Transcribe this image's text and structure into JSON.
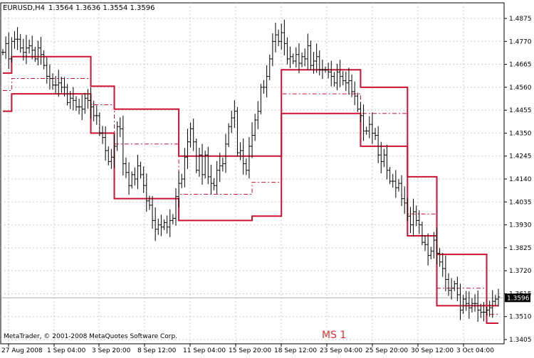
{
  "symbol_label": "EURUSD,H4",
  "ohlc_label": "1.3564 1.3636 1.3554 1.3596",
  "copyright": "MetaTrader, © 2001-2008 MetaQuotes Software Corp.",
  "indicator_label": "MS 1",
  "current_price_label": "1.3596",
  "colors": {
    "background": "#ffffff",
    "grid": "#c8c8c8",
    "bars": "#000000",
    "channel": "#cc1133",
    "mid": "#cc1133",
    "label": "#e53030"
  },
  "chart_data": {
    "type": "line",
    "ylim": [
      1.3405,
      1.4875
    ],
    "y_ticks": [
      "1.4875",
      "1.4770",
      "1.4665",
      "1.4560",
      "1.4455",
      "1.4350",
      "1.4245",
      "1.4140",
      "1.4035",
      "1.3930",
      "1.3825",
      "1.3720",
      "1.3615",
      "1.3510",
      "1.3405"
    ],
    "x_ticks": [
      "27 Aug 2008",
      "1 Sep 04:00",
      "3 Sep 20:00",
      "8 Sep 12:00",
      "11 Sep 04:00",
      "15 Sep 20:00",
      "18 Sep 12:00",
      "23 Sep 04:00",
      "25 Sep 20:00",
      "30 Sep 12:00",
      "3 Oct 04:00"
    ],
    "current_price": 1.3596,
    "bar_count": 170,
    "bar_closes": [
      1.472,
      1.476,
      1.469,
      1.477,
      1.478,
      1.478,
      1.474,
      1.472,
      1.474,
      1.475,
      1.473,
      1.469,
      1.474,
      1.471,
      1.466,
      1.461,
      1.46,
      1.457,
      1.457,
      1.458,
      1.456,
      1.456,
      1.449,
      1.451,
      1.45,
      1.447,
      1.447,
      1.446,
      1.451,
      1.45,
      1.447,
      1.443,
      1.443,
      1.435,
      1.433,
      1.427,
      1.422,
      1.424,
      1.429,
      1.438,
      1.437,
      1.421,
      1.417,
      1.411,
      1.416,
      1.414,
      1.42,
      1.416,
      1.411,
      1.404,
      1.402,
      1.395,
      1.391,
      1.393,
      1.392,
      1.394,
      1.392,
      1.395,
      1.396,
      1.406,
      1.412,
      1.414,
      1.424,
      1.431,
      1.437,
      1.431,
      1.418,
      1.425,
      1.416,
      1.425,
      1.415,
      1.412,
      1.411,
      1.418,
      1.42,
      1.421,
      1.43,
      1.438,
      1.442,
      1.445,
      1.426,
      1.427,
      1.421,
      1.418,
      1.429,
      1.434,
      1.441,
      1.445,
      1.456,
      1.456,
      1.461,
      1.469,
      1.477,
      1.48,
      1.477,
      1.481,
      1.476,
      1.469,
      1.47,
      1.468,
      1.471,
      1.467,
      1.47,
      1.469,
      1.475,
      1.466,
      1.468,
      1.47,
      1.464,
      1.464,
      1.464,
      1.463,
      1.461,
      1.458,
      1.463,
      1.461,
      1.459,
      1.458,
      1.459,
      1.454,
      1.452,
      1.446,
      1.443,
      1.436,
      1.436,
      1.439,
      1.435,
      1.434,
      1.425,
      1.422,
      1.425,
      1.418,
      1.413,
      1.413,
      1.41,
      1.412,
      1.405,
      1.403,
      1.397,
      1.393,
      1.399,
      1.395,
      1.393,
      1.385,
      1.384,
      1.379,
      1.381,
      1.386,
      1.38,
      1.376,
      1.373,
      1.368,
      1.363,
      1.364,
      1.366,
      1.361,
      1.354,
      1.359,
      1.357,
      1.355,
      1.357,
      1.357,
      1.354,
      1.353,
      1.353,
      1.354,
      1.355,
      1.358,
      1.359,
      1.36
    ],
    "series": [
      {
        "style": "solid",
        "points": [
          [
            0,
            1.4625
          ],
          [
            3,
            1.47
          ],
          [
            20,
            1.47
          ],
          [
            30,
            1.4565
          ],
          [
            38,
            1.446
          ],
          [
            60,
            1.4245
          ],
          [
            85,
            1.4245
          ],
          [
            95,
            1.464
          ],
          [
            109,
            1.464
          ],
          [
            122,
            1.456
          ],
          [
            138,
            1.415
          ],
          [
            148,
            1.3795
          ],
          [
            165,
            1.356
          ],
          [
            169,
            1.356
          ]
        ]
      },
      {
        "style": "dashed",
        "points": [
          [
            0,
            1.4545
          ],
          [
            3,
            1.46
          ],
          [
            20,
            1.46
          ],
          [
            30,
            1.448
          ],
          [
            38,
            1.43
          ],
          [
            60,
            1.407
          ],
          [
            85,
            1.4125
          ],
          [
            95,
            1.453
          ],
          [
            109,
            1.453
          ],
          [
            122,
            1.444
          ],
          [
            138,
            1.398
          ],
          [
            148,
            1.364
          ],
          [
            165,
            1.352
          ],
          [
            169,
            1.352
          ]
        ]
      },
      {
        "style": "solid",
        "points": [
          [
            0,
            1.445
          ],
          [
            3,
            1.453
          ],
          [
            20,
            1.453
          ],
          [
            30,
            1.435
          ],
          [
            38,
            1.405
          ],
          [
            60,
            1.395
          ],
          [
            85,
            1.397
          ],
          [
            95,
            1.444
          ],
          [
            109,
            1.444
          ],
          [
            122,
            1.429
          ],
          [
            138,
            1.388
          ],
          [
            148,
            1.356
          ],
          [
            165,
            1.348
          ],
          [
            169,
            1.348
          ]
        ]
      }
    ]
  }
}
